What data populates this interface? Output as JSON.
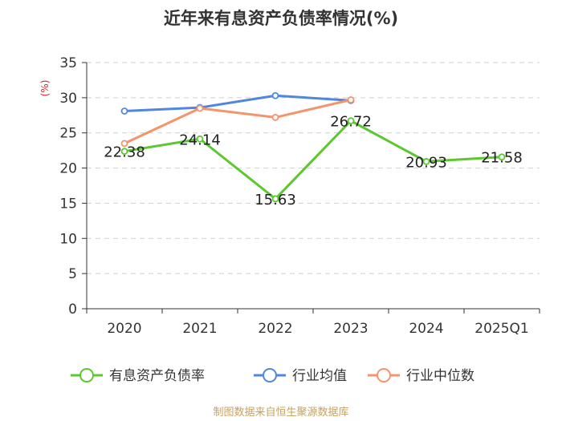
{
  "chart_data": {
    "type": "line",
    "title": "近年来有息资产负债率情况(%)",
    "ylabel": "(%)",
    "xlabel": "",
    "categories": [
      "2020",
      "2021",
      "2022",
      "2023",
      "2024",
      "2025Q1"
    ],
    "ylim": [
      0,
      35
    ],
    "yticks": [
      0,
      5,
      10,
      15,
      20,
      25,
      30,
      35
    ],
    "grid": "horizontal dashed",
    "legend_position": "bottom",
    "series": [
      {
        "name": "有息资产负债率",
        "color": "#5cc82e",
        "values": [
          22.38,
          24.14,
          15.63,
          26.72,
          20.93,
          21.58
        ],
        "labels": [
          "22.38",
          "24.14",
          "15.63",
          "26.72",
          "20.93",
          "21.58"
        ]
      },
      {
        "name": "行业均值",
        "color": "#5086e0",
        "values": [
          28.1,
          28.6,
          30.3,
          29.6,
          null,
          null
        ]
      },
      {
        "name": "行业中位数",
        "color": "#f4946a",
        "values": [
          23.5,
          28.5,
          27.2,
          29.7,
          null,
          null
        ]
      }
    ]
  },
  "source": "制图数据来自恒生聚源数据库"
}
